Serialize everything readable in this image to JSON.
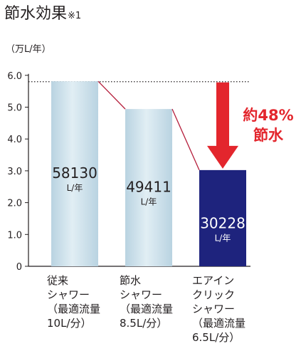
{
  "header": {
    "title": "節水効果",
    "note_mark": "※1"
  },
  "unit_label": "（万L/年）",
  "savings": {
    "line1": "約48%",
    "line2": "節水"
  },
  "colors": {
    "bar_light": "#cfe2ec",
    "bar_dark": "#1e237d",
    "connector": "#b51f3c",
    "arrow": "#e3262d",
    "axis": "#231f20"
  },
  "chart_data": {
    "type": "bar",
    "title": "節水効果",
    "ylabel": "（万L/年）",
    "ylim": [
      0,
      6.0
    ],
    "yticks": [
      "0",
      "1.0",
      "2.0",
      "3.0",
      "4.0",
      "5.0",
      "6.0"
    ],
    "reference_line": 5.8,
    "categories": [
      "従来\nシャワー\n（最適流量\n10L/分）",
      "節水\nシャワー\n（最適流量\n8.5L/分）",
      "エアイン\nクリック\nシャワー\n（最適流量\n6.5L/分）"
    ],
    "values": [
      5.813,
      4.9411,
      3.0228
    ],
    "value_labels": [
      "58130",
      "49411",
      "30228"
    ],
    "value_units": [
      "L/年",
      "L/年",
      "L/年"
    ]
  }
}
